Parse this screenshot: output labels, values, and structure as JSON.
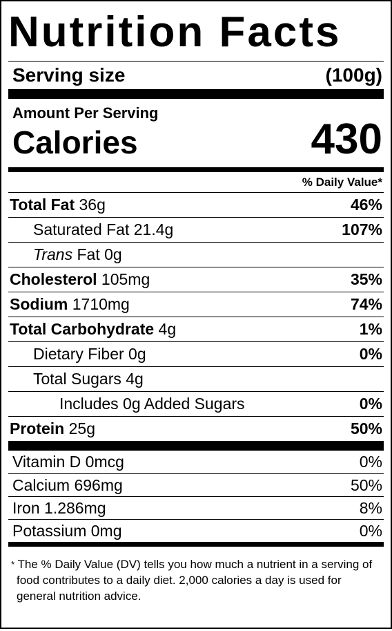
{
  "title": "Nutrition Facts",
  "serving": {
    "label": "Serving size",
    "value": "(100g)"
  },
  "amount_per_serving": "Amount Per Serving",
  "calories": {
    "label": "Calories",
    "value": "430"
  },
  "dv_header": "% Daily Value*",
  "nutrients": [
    {
      "name": "Total Fat",
      "amount": " 36g",
      "dv": "46%"
    },
    {
      "name": "Saturated Fat 21.4g",
      "dv": "107%"
    },
    {
      "name_italic": "Trans",
      "name_rest": " Fat 0g",
      "dv": ""
    },
    {
      "name": "Cholesterol",
      "amount": " 105mg",
      "dv": "35%"
    },
    {
      "name": "Sodium",
      "amount": " 1710mg",
      "dv": "74%"
    },
    {
      "name": "Total Carbohydrate",
      "amount": " 4g",
      "dv": "1%"
    },
    {
      "name": "Dietary Fiber 0g",
      "dv": "0%"
    },
    {
      "name": "Total Sugars 4g",
      "dv": ""
    },
    {
      "name": "Includes 0g Added Sugars",
      "dv": "0%"
    },
    {
      "name": "Protein",
      "amount": " 25g",
      "dv": "50%"
    }
  ],
  "vitamins": [
    {
      "name": "Vitamin D 0mcg",
      "dv": "0%"
    },
    {
      "name": "Calcium 696mg",
      "dv": "50%"
    },
    {
      "name": "Iron 1.286mg",
      "dv": "8%"
    },
    {
      "name": "Potassium 0mg",
      "dv": "0%"
    }
  ],
  "footnote": {
    "star": "*",
    "text": "The % Daily Value (DV) tells you how much a nutrient in a serving of food contributes to a daily diet. 2,000 calories a day is used for general nutrition advice."
  }
}
